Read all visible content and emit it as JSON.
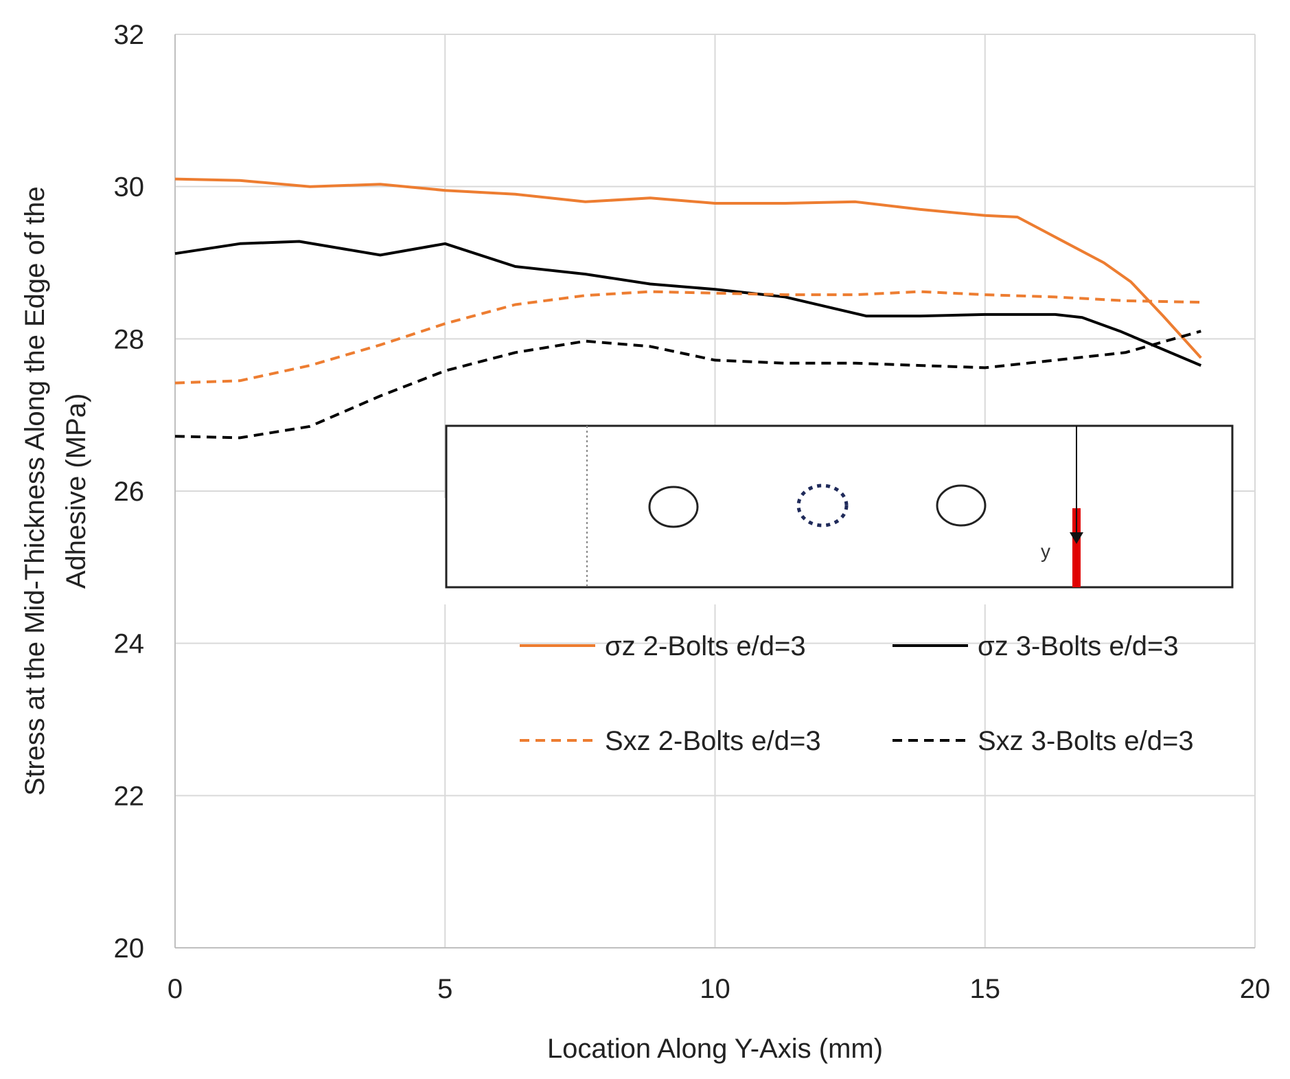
{
  "chart_data": {
    "type": "line",
    "xlabel": "Location Along Y-Axis (mm)",
    "ylabel_lines": [
      "Stress at the Mid-Thickness Along the Edge of the",
      "Adhesive (MPa)"
    ],
    "xlim": [
      0,
      20
    ],
    "ylim": [
      20,
      32
    ],
    "xticks": [
      0,
      5,
      10,
      15,
      20
    ],
    "yticks": [
      20,
      22,
      24,
      26,
      28,
      30,
      32
    ],
    "grid": true,
    "legend_position": "lower-right",
    "series": [
      {
        "name": "σz 2-Bolts e/d=3",
        "color": "#ED7D31",
        "dash": "solid",
        "x": [
          0,
          1.2,
          2.5,
          3.8,
          5.0,
          6.3,
          7.6,
          8.8,
          10.0,
          11.3,
          12.6,
          13.8,
          15.0,
          15.6,
          16.4,
          17.2,
          17.7,
          18.3,
          19.0
        ],
        "y": [
          30.1,
          30.08,
          30.0,
          30.03,
          29.95,
          29.9,
          29.8,
          29.85,
          29.78,
          29.78,
          29.8,
          29.7,
          29.62,
          29.6,
          29.3,
          29.0,
          28.75,
          28.3,
          27.75
        ]
      },
      {
        "name": "σz 3-Bolts e/d=3",
        "color": "#000000",
        "dash": "solid",
        "x": [
          0,
          1.2,
          2.3,
          3.8,
          5.0,
          6.3,
          7.6,
          8.8,
          10.0,
          11.3,
          12.8,
          13.8,
          15.0,
          16.3,
          16.8,
          17.5,
          18.0,
          19.0
        ],
        "y": [
          29.12,
          29.25,
          29.28,
          29.1,
          29.25,
          28.95,
          28.85,
          28.72,
          28.65,
          28.55,
          28.3,
          28.3,
          28.32,
          28.32,
          28.28,
          28.1,
          27.95,
          27.65
        ]
      },
      {
        "name": "Sxz 2-Bolts e/d=3",
        "color": "#ED7D31",
        "dash": "dashed",
        "x": [
          0,
          1.2,
          2.5,
          3.8,
          5.0,
          6.3,
          7.6,
          8.8,
          10.0,
          11.3,
          12.6,
          13.8,
          15.0,
          16.3,
          17.6,
          19.0
        ],
        "y": [
          27.42,
          27.45,
          27.65,
          27.92,
          28.2,
          28.45,
          28.57,
          28.62,
          28.6,
          28.58,
          28.58,
          28.62,
          28.58,
          28.55,
          28.5,
          28.48
        ]
      },
      {
        "name": "Sxz 3-Bolts e/d=3",
        "color": "#000000",
        "dash": "dashed",
        "x": [
          0,
          1.2,
          2.5,
          3.8,
          5.0,
          6.3,
          7.6,
          8.8,
          10.0,
          11.3,
          12.6,
          13.8,
          15.0,
          16.3,
          17.6,
          19.0
        ],
        "y": [
          26.72,
          26.7,
          26.85,
          27.25,
          27.58,
          27.82,
          27.97,
          27.9,
          27.72,
          27.68,
          27.68,
          27.65,
          27.62,
          27.72,
          27.82,
          28.1
        ]
      }
    ]
  },
  "inset": {
    "axis_label": "y"
  }
}
